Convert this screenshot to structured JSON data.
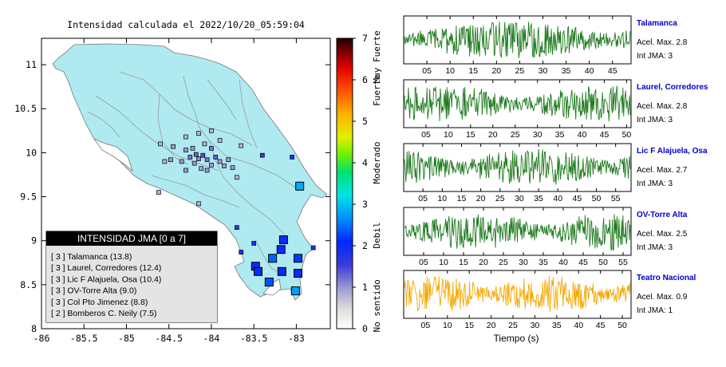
{
  "title": "Intensidad calculada el 2022/10/20_05:59:04",
  "colors": {
    "land": "#aeeaf0",
    "waveform_green": "#1c7a1c",
    "waveform_orange": "#f5a800",
    "station_label": "#0000cc"
  },
  "map": {
    "x_ticks": [
      "-86",
      "-85.5",
      "-85",
      "-84.5",
      "-84",
      "-83.5",
      "-83"
    ],
    "y_ticks": [
      "11",
      "10.5",
      "10",
      "9.5",
      "9",
      "8.5",
      "8"
    ],
    "xlim": [
      -86,
      -82.6
    ],
    "ylim": [
      8,
      11.3
    ]
  },
  "colorbar": {
    "ticks": [
      "0",
      "1",
      "2",
      "3",
      "4",
      "5",
      "6",
      "7"
    ],
    "labels": [
      "No sentido",
      "Debil",
      "Moderado",
      "Fuerte",
      "Muy Fuerte"
    ]
  },
  "legend": {
    "title": "INTENSIDAD JMA [0 a 7]",
    "items": [
      "[ 3 ]  Talamanca (13.8)",
      "[ 3 ]  Laurel, Corredores (12.4)",
      "[ 3 ]  Lic F Alajuela, Osa (10.4)",
      "[ 3 ]  OV-Torre Alta (9.0)",
      "[ 3 ]  Col Pto Jimenez (8.8)",
      "[ 2 ]  Bomberos C. Neily (7.5)"
    ]
  },
  "waveforms": {
    "xlabel": "Tiempo (s)",
    "panels": [
      {
        "name": "Talamanca",
        "acel": "Acel. Max. 2.8",
        "int": "Int JMA: 3",
        "color": "#1c7a1c",
        "xmax": 49,
        "ticks": [
          "05",
          "10",
          "15",
          "20",
          "25",
          "30",
          "35",
          "40",
          "45"
        ]
      },
      {
        "name": "Laurel, Corredores",
        "acel": "Acel. Max. 2.8",
        "int": "Int JMA: 3",
        "color": "#1c7a1c",
        "xmax": 51,
        "ticks": [
          "05",
          "10",
          "15",
          "20",
          "25",
          "30",
          "35",
          "40",
          "45",
          "50"
        ]
      },
      {
        "name": "Lic F Alajuela, Osa",
        "acel": "Acel. Max. 2.7",
        "int": "Int JMA: 3",
        "color": "#1c7a1c",
        "xmax": 59,
        "ticks": [
          "05",
          "10",
          "15",
          "20",
          "25",
          "30",
          "35",
          "40",
          "45",
          "50",
          "55"
        ]
      },
      {
        "name": "OV-Torre Alta",
        "acel": "Acel. Max. 2.5",
        "int": "Int JMA: 3",
        "color": "#1c7a1c",
        "xmax": 57,
        "ticks": [
          "05",
          "10",
          "15",
          "20",
          "25",
          "30",
          "35",
          "40",
          "45",
          "50",
          "55"
        ]
      },
      {
        "name": "Teatro Nacional",
        "acel": "Acel. Max. 0.9",
        "int": "Int JMA: 1",
        "color": "#f5a800",
        "xmax": 52,
        "ticks": [
          "05",
          "10",
          "15",
          "20",
          "25",
          "30",
          "35",
          "40",
          "45",
          "50"
        ]
      }
    ]
  },
  "chart_data": [
    {
      "type": "scatter",
      "title": "Intensidad calculada el 2022/10/20_05:59:04",
      "xlabel": "",
      "ylabel": "",
      "xlim": [
        -86,
        -82.6
      ],
      "ylim": [
        8,
        11.3
      ],
      "grid": false,
      "legend_position": "bottom-left",
      "series": [
        {
          "name": "INTENSIDAD JMA [0 a 7]",
          "points": [
            {
              "x": -82.96,
              "y": 9.62,
              "v": 2.8
            },
            {
              "x": -83.15,
              "y": 9.01,
              "v": 2.0
            },
            {
              "x": -83.18,
              "y": 8.9,
              "v": 2.0
            },
            {
              "x": -83.28,
              "y": 8.8,
              "v": 2.4
            },
            {
              "x": -82.98,
              "y": 8.8,
              "v": 2.2
            },
            {
              "x": -83.48,
              "y": 8.71,
              "v": 2.0
            },
            {
              "x": -83.45,
              "y": 8.65,
              "v": 2.0
            },
            {
              "x": -83.17,
              "y": 8.65,
              "v": 2.0
            },
            {
              "x": -82.98,
              "y": 8.63,
              "v": 2.0
            },
            {
              "x": -83.32,
              "y": 8.53,
              "v": 2.3
            },
            {
              "x": -83.01,
              "y": 8.43,
              "v": 2.7
            },
            {
              "x": -83.65,
              "y": 8.87,
              "v": 1.8
            },
            {
              "x": -83.5,
              "y": 8.97,
              "v": 1.8
            },
            {
              "x": -83.05,
              "y": 9.95,
              "v": 1.8
            },
            {
              "x": -82.8,
              "y": 8.92,
              "v": 1.8
            },
            {
              "x": -83.7,
              "y": 9.15,
              "v": 1.5
            },
            {
              "x": -83.4,
              "y": 9.97,
              "v": 1.5
            },
            {
              "x": -84.0,
              "y": 10.05,
              "v": 1.2
            },
            {
              "x": -83.95,
              "y": 9.95,
              "v": 1.3
            },
            {
              "x": -84.05,
              "y": 9.92,
              "v": 1.2
            },
            {
              "x": -84.1,
              "y": 9.97,
              "v": 1.4
            },
            {
              "x": -84.15,
              "y": 9.93,
              "v": 1.1
            },
            {
              "x": -84.2,
              "y": 9.88,
              "v": 1.0
            },
            {
              "x": -84.0,
              "y": 9.86,
              "v": 1.0
            },
            {
              "x": -83.9,
              "y": 9.9,
              "v": 1.0
            },
            {
              "x": -84.05,
              "y": 9.8,
              "v": 1.0
            },
            {
              "x": -84.12,
              "y": 9.82,
              "v": 0.9
            },
            {
              "x": -84.18,
              "y": 9.98,
              "v": 1.3
            },
            {
              "x": -84.22,
              "y": 10.05,
              "v": 1.0
            },
            {
              "x": -84.3,
              "y": 10.03,
              "v": 1.0
            },
            {
              "x": -84.45,
              "y": 10.07,
              "v": 1.0
            },
            {
              "x": -84.48,
              "y": 9.92,
              "v": 1.0
            },
            {
              "x": -84.35,
              "y": 9.9,
              "v": 1.0
            },
            {
              "x": -84.25,
              "y": 9.95,
              "v": 1.2
            },
            {
              "x": -83.85,
              "y": 9.85,
              "v": 1.0
            },
            {
              "x": -83.75,
              "y": 9.83,
              "v": 1.0
            },
            {
              "x": -83.8,
              "y": 9.92,
              "v": 1.0
            },
            {
              "x": -84.3,
              "y": 9.8,
              "v": 1.0
            },
            {
              "x": -84.55,
              "y": 9.9,
              "v": 0.8
            },
            {
              "x": -84.15,
              "y": 10.22,
              "v": 0.8
            },
            {
              "x": -84.0,
              "y": 10.25,
              "v": 0.8
            },
            {
              "x": -84.3,
              "y": 10.18,
              "v": 0.8
            },
            {
              "x": -84.08,
              "y": 10.1,
              "v": 0.8
            },
            {
              "x": -83.9,
              "y": 10.14,
              "v": 0.8
            },
            {
              "x": -84.6,
              "y": 10.1,
              "v": 0.8
            },
            {
              "x": -83.65,
              "y": 10.08,
              "v": 0.8
            },
            {
              "x": -83.7,
              "y": 9.72,
              "v": 0.8
            },
            {
              "x": -84.62,
              "y": 9.55,
              "v": 0.8
            },
            {
              "x": -84.15,
              "y": 9.42,
              "v": 0.8
            }
          ]
        }
      ]
    },
    {
      "type": "line",
      "title": "",
      "xlabel": "Tiempo (s)",
      "ylabel": "",
      "series": [
        {
          "name": "Talamanca",
          "xlim": [
            0,
            49
          ]
        },
        {
          "name": "Laurel, Corredores",
          "xlim": [
            0,
            51
          ]
        },
        {
          "name": "Lic F Alajuela, Osa",
          "xlim": [
            0,
            59
          ]
        },
        {
          "name": "OV-Torre Alta",
          "xlim": [
            0,
            57
          ]
        },
        {
          "name": "Teatro Nacional",
          "xlim": [
            0,
            52
          ]
        }
      ]
    }
  ]
}
